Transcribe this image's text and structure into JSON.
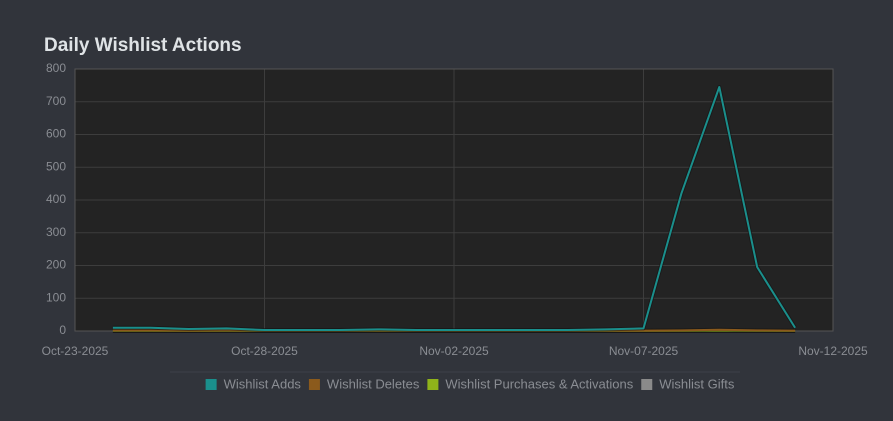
{
  "chart_data": {
    "type": "line",
    "title": "Daily Wishlist Actions",
    "categories": [
      "Oct-23-2025",
      null,
      null,
      null,
      null,
      "Oct-28-2025",
      null,
      null,
      null,
      null,
      "Nov-02-2025",
      null,
      null,
      null,
      null,
      "Nov-07-2025",
      null,
      null,
      null,
      null,
      "Nov-12-2025"
    ],
    "series": [
      {
        "name": "Wishlist Adds",
        "color": "#1a8f8c",
        "values": [
          null,
          10,
          10,
          6,
          8,
          3,
          3,
          3,
          5,
          3,
          3,
          3,
          3,
          3,
          5,
          8,
          420,
          745,
          195,
          10,
          null
        ]
      },
      {
        "name": "Wishlist Deletes",
        "color": "#8b5a1c",
        "values": [
          null,
          2,
          2,
          1,
          2,
          1,
          1,
          1,
          1,
          1,
          1,
          1,
          1,
          1,
          1,
          1,
          2,
          4,
          2,
          1,
          null
        ]
      },
      {
        "name": "Wishlist Purchases & Activations",
        "color": "#8fb31a",
        "values": [
          null,
          0,
          0,
          0,
          0,
          0,
          0,
          0,
          0,
          0,
          0,
          0,
          0,
          0,
          0,
          0,
          0,
          0,
          0,
          0,
          null
        ]
      },
      {
        "name": "Wishlist Gifts",
        "color": "#8a8a8a",
        "values": [
          null,
          0,
          0,
          0,
          0,
          0,
          0,
          0,
          0,
          0,
          0,
          0,
          0,
          0,
          0,
          0,
          0,
          0,
          0,
          0,
          null
        ]
      }
    ],
    "ylim": [
      0,
      800
    ],
    "yticks": [
      0,
      100,
      200,
      300,
      400,
      500,
      600,
      700,
      800
    ],
    "grid": true,
    "legend": "bottom"
  }
}
